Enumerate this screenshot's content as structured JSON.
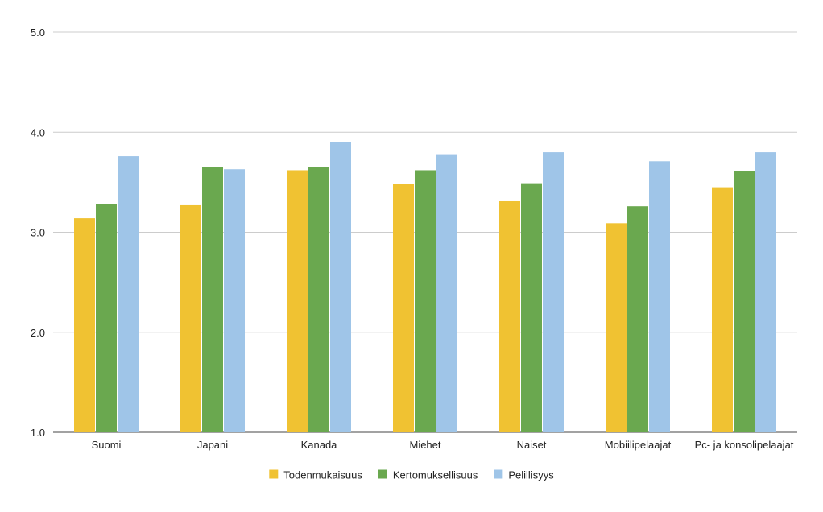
{
  "chart_data": {
    "type": "bar",
    "title": "",
    "xlabel": "",
    "ylabel": "",
    "ylim": [
      1.0,
      5.0
    ],
    "yticks": [
      "1.0",
      "2.0",
      "3.0",
      "4.0",
      "5.0"
    ],
    "grid": true,
    "legend_position": "bottom",
    "categories": [
      "Suomi",
      "Japani",
      "Kanada",
      "Miehet",
      "Naiset",
      "Mobiilipelaajat",
      "Pc- ja konsolipelaajat"
    ],
    "series": [
      {
        "name": "Todenmukaisuus",
        "color": "#f0c232",
        "values": [
          3.14,
          3.27,
          3.62,
          3.48,
          3.31,
          3.09,
          3.45
        ]
      },
      {
        "name": "Kertomuksellisuus",
        "color": "#6aa84f",
        "values": [
          3.28,
          3.65,
          3.65,
          3.62,
          3.49,
          3.26,
          3.61
        ]
      },
      {
        "name": "Pelillisyys",
        "color": "#9fc5e8",
        "values": [
          3.76,
          3.63,
          3.9,
          3.78,
          3.8,
          3.71,
          3.8
        ]
      }
    ]
  }
}
